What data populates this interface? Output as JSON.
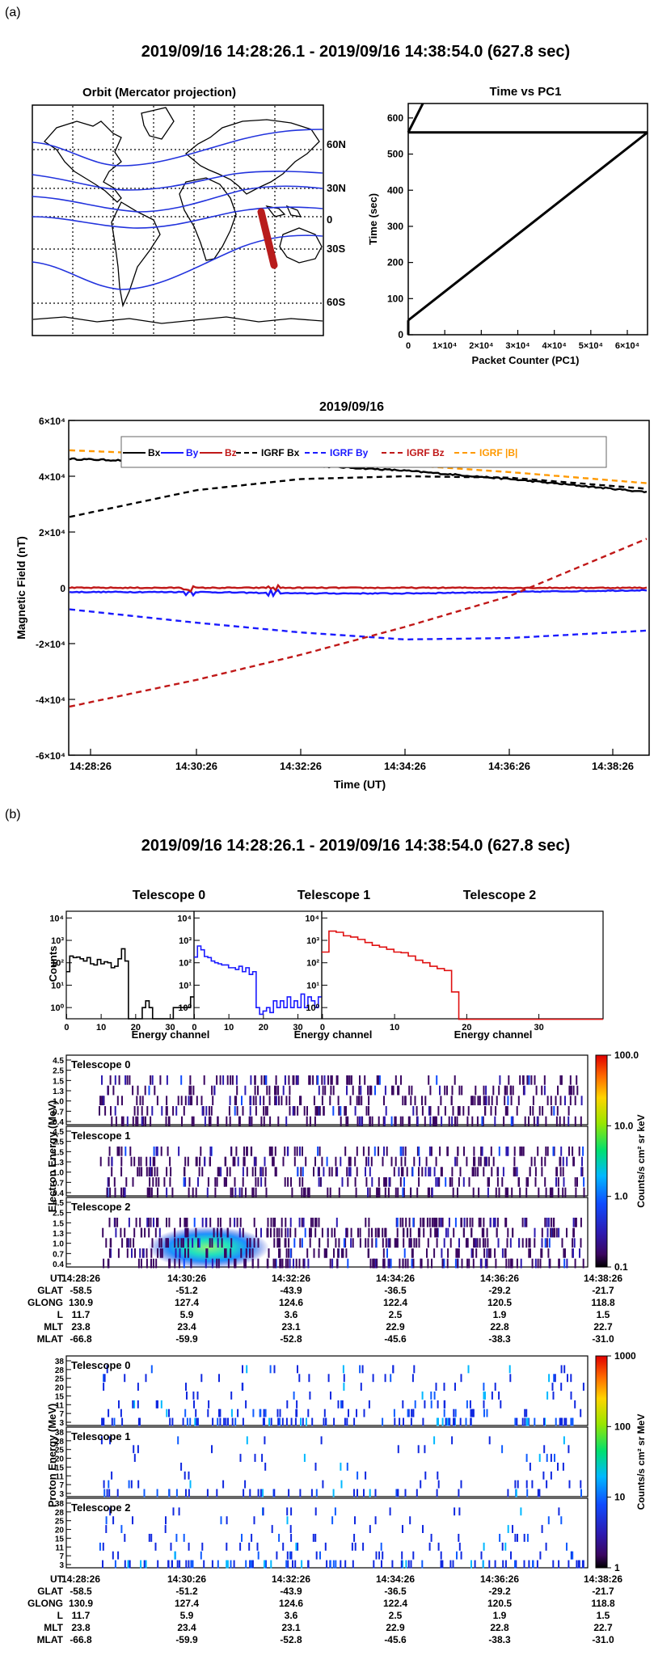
{
  "part_labels": {
    "a": "(a)",
    "b": "(b)"
  },
  "top": {
    "title": "2019/09/16 14:28:26.1 - 2019/09/16 14:38:54.0 (627.8 sec)",
    "orbit": {
      "title": "Orbit (Mercator projection)",
      "lat_labels": [
        "60N",
        "30N",
        "0",
        "30S",
        "60S"
      ],
      "track_color": "#2233dd",
      "highlight_color": "#b81c1c"
    },
    "time_pc1": {
      "title": "Time vs PC1",
      "xlabel": "Packet Counter (PC1)",
      "ylabel": "Time (sec)",
      "y_ticks": [
        "0",
        "100",
        "200",
        "300",
        "400",
        "500",
        "600"
      ],
      "x_ticks": [
        "0",
        "1×10⁴",
        "2×10⁴",
        "3×10⁴",
        "4×10⁴",
        "5×10⁴",
        "6×10⁴"
      ]
    },
    "mag": {
      "title": "2019/09/16",
      "xlabel": "Time (UT)",
      "ylabel": "Magnetic Field (nT)",
      "y_ticks": [
        "6×10⁴",
        "4×10⁴",
        "2×10⁴",
        "0",
        "-2×10⁴",
        "-4×10⁴",
        "-6×10⁴"
      ],
      "x_ticks": [
        "14:28:26",
        "14:30:26",
        "14:32:26",
        "14:34:26",
        "14:36:26",
        "14:38:26"
      ],
      "legend": [
        {
          "label": "Bx",
          "color": "#000000",
          "dashed": false
        },
        {
          "label": "By",
          "color": "#1a1aff",
          "dashed": false
        },
        {
          "label": "Bz",
          "color": "#c01818",
          "dashed": false
        },
        {
          "label": "IGRF Bx",
          "color": "#000000",
          "dashed": true
        },
        {
          "label": "IGRF By",
          "color": "#1a1aff",
          "dashed": true
        },
        {
          "label": "IGRF Bz",
          "color": "#c01818",
          "dashed": true
        },
        {
          "label": "IGRF |B|",
          "color": "#ff9900",
          "dashed": true
        }
      ]
    }
  },
  "bottom": {
    "title": "2019/09/16 14:28:26.1 - 2019/09/16 14:38:54.0 (627.8 sec)",
    "hist_titles": [
      "Telescope 0",
      "Telescope 1",
      "Telescope 2"
    ],
    "hist_xlabel": "Energy channel",
    "hist_ylabel": "Counts",
    "hist_x_ticks": [
      "0",
      "10",
      "20",
      "30"
    ],
    "hist_y_ticks": [
      "10⁴",
      "10³",
      "10²",
      "10¹",
      "10⁰"
    ],
    "hist_colors": [
      "#000000",
      "#1a1aff",
      "#e01010"
    ],
    "electron": {
      "ylabel": "Electron Energy (MeV)",
      "panel_labels": [
        "Telescope 0",
        "Telescope 1",
        "Telescope 2"
      ],
      "y_ticks": [
        "4.5",
        "2.5",
        "1.5",
        "1.3",
        "1.0",
        "0.7",
        "0.4"
      ],
      "colorbar_ticks": [
        "100.0",
        "10.0",
        "1.0",
        "0.1"
      ],
      "colorbar_label": "Counts/s cm² sr keV"
    },
    "proton": {
      "ylabel": "Proton Energy (MeV)",
      "panel_labels": [
        "Telescope 0",
        "Telescope 1",
        "Telescope 2"
      ],
      "y_ticks": [
        "38",
        "28",
        "25",
        "20",
        "15",
        "11",
        "7",
        "3"
      ],
      "colorbar_ticks": [
        "1000",
        "100",
        "10",
        "1"
      ],
      "colorbar_label": "Counts/s cm² sr MeV"
    },
    "ephem_rows": [
      {
        "label": "UT",
        "values": [
          "14:28:26",
          "14:30:26",
          "14:32:26",
          "14:34:26",
          "14:36:26",
          "14:38:26"
        ]
      },
      {
        "label": "GLAT",
        "values": [
          "-58.5",
          "-51.2",
          "-43.9",
          "-36.5",
          "-29.2",
          "-21.7"
        ]
      },
      {
        "label": "GLONG",
        "values": [
          "130.9",
          "127.4",
          "124.6",
          "122.4",
          "120.5",
          "118.8"
        ]
      },
      {
        "label": "L",
        "values": [
          "11.7",
          "5.9",
          "3.6",
          "2.5",
          "1.9",
          "1.5"
        ]
      },
      {
        "label": "MLT",
        "values": [
          "23.8",
          "23.4",
          "23.1",
          "22.9",
          "22.8",
          "22.7"
        ]
      },
      {
        "label": "MLAT",
        "values": [
          "-66.8",
          "-59.9",
          "-52.8",
          "-45.6",
          "-38.3",
          "-31.0"
        ]
      }
    ]
  },
  "chart_data": [
    {
      "type": "line",
      "title": "Time vs PC1",
      "xlabel": "Packet Counter (PC1)",
      "ylabel": "Time (sec)",
      "xlim": [
        0,
        65536
      ],
      "ylim": [
        0,
        640
      ],
      "series": [
        {
          "x": [
            0,
            4000
          ],
          "y": [
            560,
            640
          ]
        },
        {
          "x": [
            0,
            65536
          ],
          "y": [
            560,
            560
          ]
        },
        {
          "x": [
            65536,
            0
          ],
          "y": [
            560,
            40
          ]
        },
        {
          "x": [
            0,
            0
          ],
          "y": [
            40,
            0
          ]
        }
      ]
    },
    {
      "type": "line",
      "title": "2019/09/16",
      "xlabel": "Time (UT)",
      "ylabel": "Magnetic Field (nT)",
      "x": [
        "14:28:26",
        "14:30:26",
        "14:32:26",
        "14:34:26",
        "14:36:26",
        "14:38:26"
      ],
      "ylim": [
        -60000,
        60000
      ],
      "series": [
        {
          "name": "Bx",
          "values": [
            46000,
            45000,
            44000,
            42000,
            39000,
            35500
          ]
        },
        {
          "name": "By",
          "values": [
            -1500,
            -1500,
            -2000,
            -2000,
            -1500,
            -1000
          ]
        },
        {
          "name": "Bz",
          "values": [
            0,
            0,
            0,
            0,
            0,
            0
          ]
        },
        {
          "name": "IGRF Bx",
          "values": [
            27000,
            35000,
            39000,
            40000,
            39500,
            36500
          ]
        },
        {
          "name": "IGRF By",
          "values": [
            -8500,
            -12500,
            -16000,
            -18500,
            -18000,
            -16000
          ]
        },
        {
          "name": "IGRF Bz",
          "values": [
            -41000,
            -33000,
            -24000,
            -14000,
            -3000,
            12500
          ]
        },
        {
          "name": "IGRF |B|",
          "values": [
            49000,
            47500,
            46000,
            44000,
            41500,
            38500
          ]
        }
      ]
    },
    {
      "type": "bar",
      "title": "Telescope 0",
      "xlabel": "Energy channel",
      "ylabel": "Counts",
      "categories": [
        0,
        1,
        2,
        3,
        4,
        5,
        6,
        7,
        8,
        9,
        10,
        11,
        12,
        13,
        14,
        15,
        16,
        17,
        18,
        19,
        20,
        21,
        22,
        23,
        24,
        25,
        26,
        27,
        28,
        29,
        30,
        31,
        32,
        33,
        34,
        35,
        36
      ],
      "values": [
        40,
        200,
        170,
        180,
        150,
        120,
        170,
        90,
        80,
        140,
        90,
        110,
        100,
        60,
        70,
        150,
        420,
        120,
        0,
        0,
        0,
        0,
        1,
        2,
        1,
        0,
        0,
        0,
        0,
        0,
        0,
        1,
        1,
        1,
        1,
        1,
        3
      ]
    },
    {
      "type": "bar",
      "title": "Telescope 1",
      "xlabel": "Energy channel",
      "ylabel": "Counts",
      "categories": [
        0,
        1,
        2,
        3,
        4,
        5,
        6,
        7,
        8,
        9,
        10,
        11,
        12,
        13,
        14,
        15,
        16,
        17,
        18,
        19,
        20,
        21,
        22,
        23,
        24,
        25,
        26,
        27,
        28,
        29,
        30,
        31,
        32,
        33,
        34,
        35,
        36
      ],
      "values": [
        180,
        560,
        380,
        190,
        170,
        120,
        100,
        90,
        80,
        80,
        60,
        60,
        50,
        70,
        40,
        60,
        30,
        40,
        1,
        0.5,
        0.7,
        1,
        0.6,
        2,
        1,
        2,
        1,
        3,
        1,
        2,
        1,
        4,
        1,
        3,
        2,
        1,
        3
      ]
    },
    {
      "type": "bar",
      "title": "Telescope 2",
      "xlabel": "Energy channel",
      "ylabel": "Counts",
      "categories": [
        0,
        1,
        2,
        3,
        4,
        5,
        6,
        7,
        8,
        9,
        10,
        11,
        12,
        13,
        14,
        15,
        16,
        17,
        18,
        19,
        20,
        21,
        22,
        23,
        24,
        25,
        26,
        27,
        28,
        29,
        30,
        31,
        32,
        33,
        34,
        35,
        36,
        37,
        38
      ],
      "values": [
        300,
        2600,
        2300,
        1600,
        1400,
        1100,
        800,
        600,
        500,
        400,
        300,
        280,
        200,
        130,
        100,
        70,
        55,
        45,
        5,
        0.3,
        0.3,
        0.3,
        0.3,
        0.3,
        0.3,
        0.3,
        0.3,
        0.3,
        0.3,
        0.3,
        0.3,
        0.3,
        0.3,
        0.3,
        0.3,
        0.3,
        0.3,
        0.3,
        0.3
      ]
    },
    {
      "type": "heatmap",
      "title": "Electron Energy (MeV)",
      "colorbar": "Counts/s cm² sr keV",
      "y_ticks": [
        "4.5",
        "2.5",
        "1.5",
        "1.3",
        "1.0",
        "0.7",
        "0.4"
      ],
      "x": [
        "14:28:26",
        "14:30:26",
        "14:32:26",
        "14:34:26",
        "14:36:26",
        "14:38:26"
      ],
      "panels": [
        "Telescope 0",
        "Telescope 1",
        "Telescope 2"
      ]
    },
    {
      "type": "heatmap",
      "title": "Proton Energy (MeV)",
      "colorbar": "Counts/s cm² sr MeV",
      "y_ticks": [
        "38",
        "28",
        "25",
        "20",
        "15",
        "11",
        "7",
        "3"
      ],
      "x": [
        "14:28:26",
        "14:30:26",
        "14:32:26",
        "14:34:26",
        "14:36:26",
        "14:38:26"
      ],
      "panels": [
        "Telescope 0",
        "Telescope 1",
        "Telescope 2"
      ]
    }
  ]
}
